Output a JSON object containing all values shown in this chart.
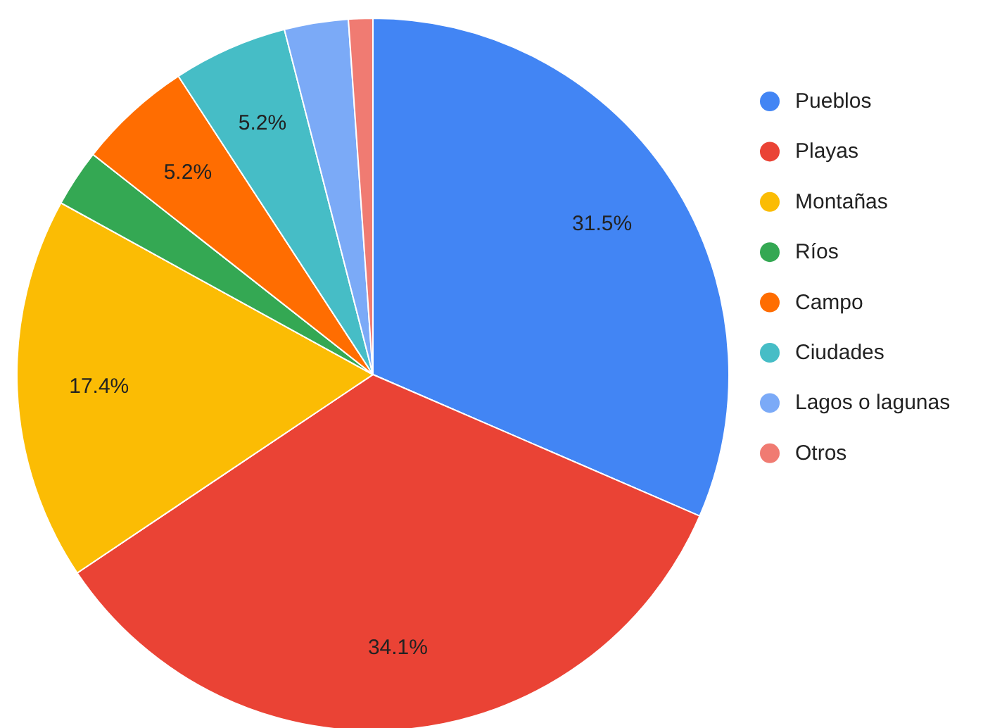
{
  "chart_data": {
    "type": "pie",
    "categories": [
      "Pueblos",
      "Playas",
      "Montañas",
      "Ríos",
      "Campo",
      "Ciudades",
      "Lagos o lagunas",
      "Otros"
    ],
    "values": [
      31.5,
      34.1,
      17.4,
      2.6,
      5.2,
      5.2,
      2.9,
      1.1
    ],
    "colors": [
      "#4285f4",
      "#ea4335",
      "#fbbc04",
      "#34a853",
      "#ff6d01",
      "#46bdc6",
      "#7baaf7",
      "#f07b72"
    ],
    "value_labels": [
      "31.5%",
      "34.1%",
      "17.4%",
      null,
      "5.2%",
      "5.2%",
      null,
      null
    ],
    "legend": "right"
  }
}
